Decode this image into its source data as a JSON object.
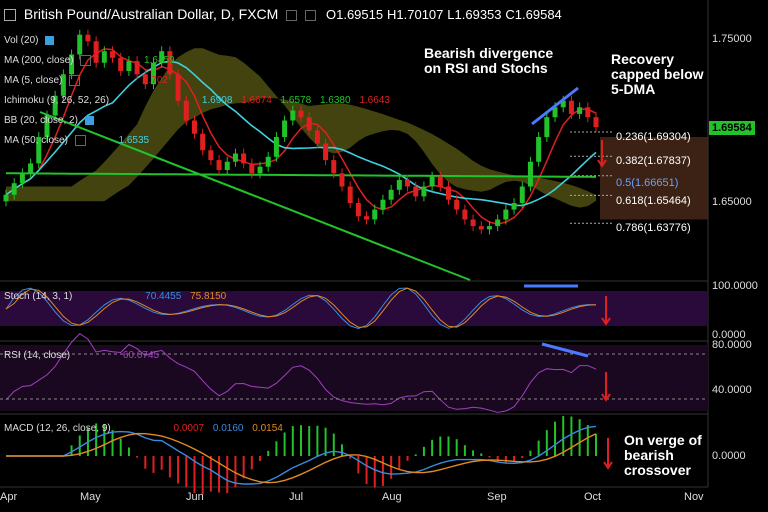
{
  "header": {
    "title": "British Pound/Australian Dollar, D, FXCM",
    "open": "O1.69515",
    "high": "H1.70107",
    "low": "L1.69353",
    "close": "C1.69584"
  },
  "indicators": {
    "vol": {
      "label": "Vol (20)"
    },
    "ma200": {
      "label": "MA (200, close)",
      "value": "1.6459"
    },
    "ma5": {
      "label": "MA (5, close)",
      "value": "1.702"
    },
    "ichimoku": {
      "label": "Ichimoku (9, 26, 52, 26)",
      "v1": "1.6908",
      "v2": "1.6674",
      "v3": "1.6578",
      "v4": "1.6380",
      "v5": "1.6643"
    },
    "bb": {
      "label": "BB (20, close, 2)"
    },
    "ma50": {
      "label": "MA (50, close)",
      "value": "1.6535"
    },
    "stoch": {
      "label": "Stoch (14, 3, 1)",
      "k": "70.4455",
      "d": "75.8150"
    },
    "rsi": {
      "label": "RSI (14, close)",
      "value": "60.0745"
    },
    "macd": {
      "label": "MACD (12, 26, close, 9)",
      "hist": "0.0007",
      "macd": "0.0160",
      "signal": "0.0154"
    }
  },
  "annotations": {
    "divergence": "Bearish divergence on RSI and Stochs",
    "recovery": "Recovery capped below 5-DMA",
    "crossover": "On verge of bearish crossover"
  },
  "fib_levels": [
    {
      "label": "0.236(1.69304)",
      "value": 1.69304
    },
    {
      "label": "0.382(1.67837)",
      "value": 1.67837
    },
    {
      "label": "0.5(1.66651)",
      "value": 1.66651
    },
    {
      "label": "0.618(1.65464)",
      "value": 1.65464
    },
    {
      "label": "0.786(1.63776)",
      "value": 1.63776
    }
  ],
  "price_axis": {
    "ticks": [
      "1.75000",
      "1.65000"
    ],
    "last_price": "1.69584"
  },
  "stoch_axis": {
    "ticks": [
      "100.0000",
      "0.0000"
    ]
  },
  "rsi_axis": {
    "ticks": [
      "80.0000",
      "40.0000"
    ]
  },
  "macd_axis": {
    "ticks": [
      "0.0000"
    ]
  },
  "months": [
    "Apr",
    "May",
    "Jun",
    "Jul",
    "Aug",
    "Sep",
    "Oct",
    "Nov"
  ],
  "colors": {
    "bull": "#22c22a",
    "bear": "#e02020",
    "ma5": "#e02020",
    "ma50": "#3fd0e0",
    "ma200": "#22c22a",
    "cloud": "#5a5a14",
    "cloud_bear": "#4a2a1a",
    "stoch_bg": "#2a0a3a",
    "rsi_line": "#a040c0",
    "macd_line": "#3a8ae0",
    "signal_line": "#e08a20",
    "divergence": "#4a7aff"
  },
  "chart_data": {
    "type": "candlestick",
    "title": "British Pound/Australian Dollar, D, FXCM",
    "x_labels": [
      "Apr",
      "May",
      "Jun",
      "Jul",
      "Aug",
      "Sep",
      "Oct",
      "Nov"
    ],
    "ylim": [
      1.61,
      1.77
    ],
    "close_series": [
      1.655,
      1.662,
      1.668,
      1.674,
      1.69,
      1.703,
      1.715,
      1.728,
      1.74,
      1.752,
      1.748,
      1.735,
      1.742,
      1.738,
      1.73,
      1.736,
      1.728,
      1.722,
      1.735,
      1.742,
      1.728,
      1.712,
      1.7,
      1.692,
      1.682,
      1.676,
      1.67,
      1.675,
      1.68,
      1.674,
      1.668,
      1.672,
      1.678,
      1.69,
      1.7,
      1.706,
      1.702,
      1.694,
      1.686,
      1.676,
      1.668,
      1.66,
      1.65,
      1.642,
      1.64,
      1.646,
      1.652,
      1.658,
      1.664,
      1.66,
      1.654,
      1.66,
      1.666,
      1.66,
      1.652,
      1.646,
      1.64,
      1.636,
      1.634,
      1.636,
      1.64,
      1.646,
      1.65,
      1.66,
      1.675,
      1.69,
      1.702,
      1.708,
      1.712,
      1.704,
      1.708,
      1.702,
      1.696
    ],
    "fib_levels": [
      1.69304,
      1.67837,
      1.66651,
      1.65464,
      1.63776
    ],
    "stoch": {
      "k": 70.4455,
      "d": 75.815,
      "ylim": [
        0,
        100
      ]
    },
    "rsi": {
      "value": 60.0745,
      "ylim": [
        20,
        90
      ]
    },
    "macd": {
      "hist": 0.0007,
      "macd": 0.016,
      "signal": 0.0154
    }
  }
}
